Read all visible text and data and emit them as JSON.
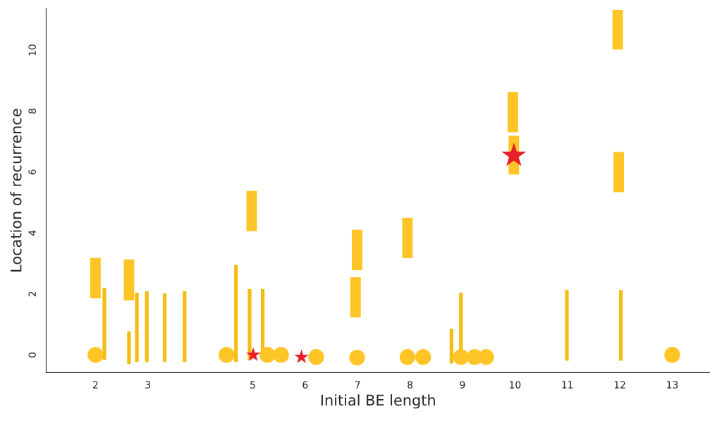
{
  "chart_data": {
    "type": "bar",
    "xlabel": "Initial BE length",
    "ylabel": "Location of recurrence",
    "xlim": [
      1.06,
      13.72
    ],
    "ylim": [
      -0.58,
      11.37
    ],
    "xticks": [
      2,
      3,
      5,
      6,
      7,
      8,
      9,
      10,
      11,
      12,
      13
    ],
    "yticks": [
      0,
      2,
      4,
      6,
      8,
      10
    ],
    "grid": false,
    "legend": false,
    "series": [
      {
        "type": "scatter",
        "marker": "circle",
        "color": "#ffc425",
        "x": [
          2.0,
          4.5,
          5.28,
          5.54,
          6.21,
          6.99,
          7.95,
          8.25,
          8.97,
          9.23,
          9.45,
          13.0
        ],
        "values": [
          0,
          0,
          0,
          0,
          -0.07,
          -0.09,
          -0.07,
          -0.07,
          -0.07,
          -0.07,
          -0.07,
          0
        ]
      },
      {
        "color": "#ffc425",
        "x": [
          2.0,
          2.64,
          4.98,
          6.96,
          6.99,
          7.95,
          9.96,
          9.98,
          11.96,
          11.98
        ],
        "base": [
          1.86,
          1.79,
          4.06,
          1.23,
          2.78,
          3.18,
          7.31,
          5.92,
          10.02,
          5.34
        ],
        "values": [
          1.32,
          1.34,
          1.32,
          1.32,
          1.33,
          1.32,
          1.32,
          1.27,
          1.3,
          1.32
        ]
      },
      {
        "color": "#f5bd14",
        "x": [
          2.17,
          2.64,
          2.79,
          2.98,
          3.32,
          3.7,
          4.68,
          4.94,
          5.19,
          8.79,
          8.97,
          10.99,
          12.02
        ],
        "base": [
          -0.16,
          -0.3,
          -0.23,
          -0.23,
          -0.23,
          -0.23,
          -0.23,
          -0.16,
          -0.16,
          -0.28,
          -0.23,
          -0.19,
          -0.19
        ],
        "values": [
          2.36,
          1.07,
          2.27,
          2.32,
          2.25,
          2.32,
          3.18,
          2.32,
          2.32,
          1.14,
          2.27,
          2.32,
          2.32
        ]
      },
      {
        "type": "bubble",
        "marker": "star",
        "color": "#e8202a",
        "x": [
          5.01,
          5.93,
          9.98
        ],
        "values": [
          0,
          -0.07,
          6.54
        ],
        "sizes": [
          0.35,
          0.35,
          1
        ]
      }
    ]
  }
}
